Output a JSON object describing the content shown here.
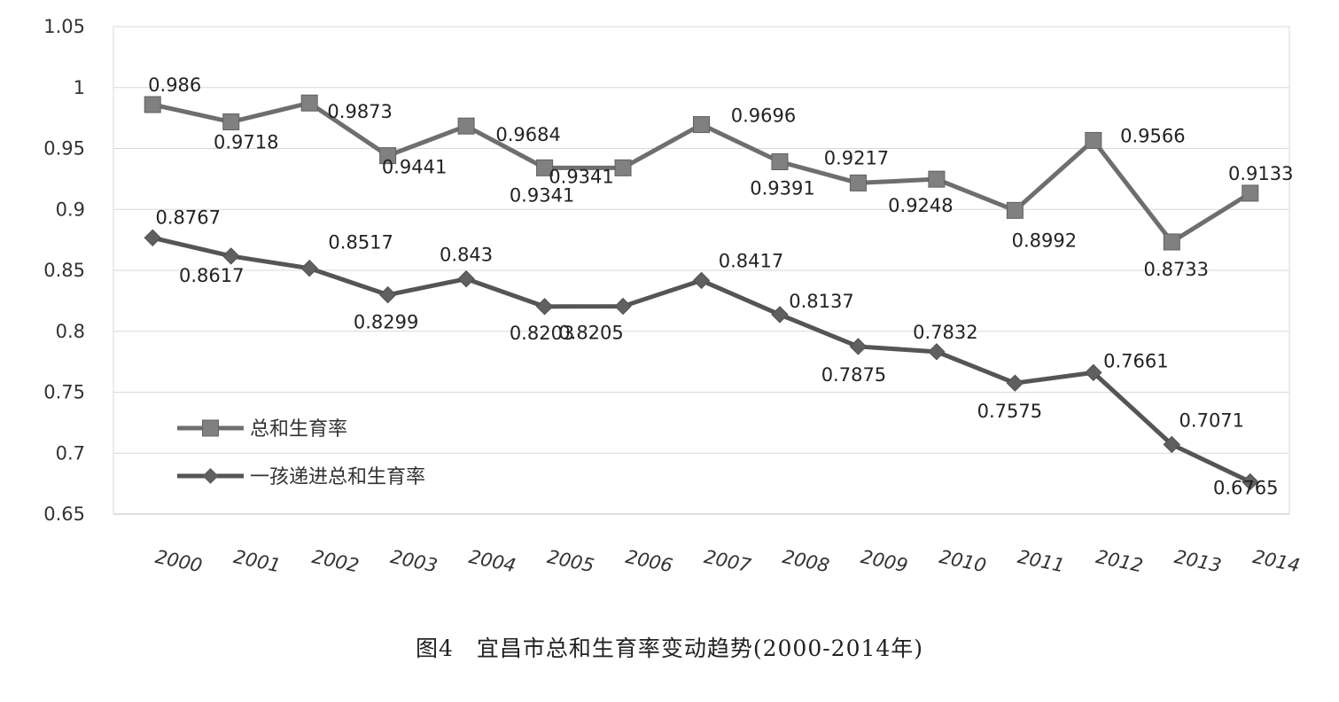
{
  "caption": "图4　宜昌市总和生育率变动趋势(2000-2014年)",
  "chart_data": {
    "type": "line",
    "x": [
      "2000",
      "2001",
      "2002",
      "2003",
      "2004",
      "2005",
      "2006",
      "2007",
      "2008",
      "2009",
      "2010",
      "2011",
      "2012",
      "2013",
      "2014"
    ],
    "ylim": [
      0.65,
      1.05
    ],
    "yticks": [
      "0.65",
      "0.7",
      "0.75",
      "0.8",
      "0.85",
      "0.9",
      "0.95",
      "1",
      "1.05"
    ],
    "grid": true,
    "legend_position": "bottom-left",
    "series": [
      {
        "name": "总和生育率",
        "marker": "square",
        "color": "#6e6e6e",
        "values": [
          0.986,
          0.9718,
          0.9873,
          0.9441,
          0.9684,
          0.9341,
          0.9341,
          0.9696,
          0.9391,
          0.9217,
          0.9248,
          0.8992,
          0.9566,
          0.8733,
          0.9133
        ],
        "labels": [
          "0.986",
          "0.9718",
          "0.9873",
          "0.9441",
          "0.9684",
          "0.9341",
          "0.9341",
          "0.9696",
          "0.9391",
          "0.9217",
          "0.9248",
          "0.8992",
          "0.9566",
          "0.8733",
          "0.9133"
        ]
      },
      {
        "name": "一孩递进总和生育率",
        "marker": "diamond",
        "color": "#555555",
        "values": [
          0.8767,
          0.8617,
          0.8517,
          0.8299,
          0.843,
          0.8203,
          0.8205,
          0.8417,
          0.8137,
          0.7875,
          0.7832,
          0.7575,
          0.7661,
          0.7071,
          0.6765
        ],
        "labels": [
          "0.8767",
          "0.8617",
          "0.8517",
          "0.8299",
          "0.843",
          "0.8203",
          "0.8205",
          "0.8417",
          "0.8137",
          "0.7875",
          "0.7832",
          "0.7575",
          "0.7661",
          "0.7071",
          "0.6765"
        ]
      }
    ]
  }
}
